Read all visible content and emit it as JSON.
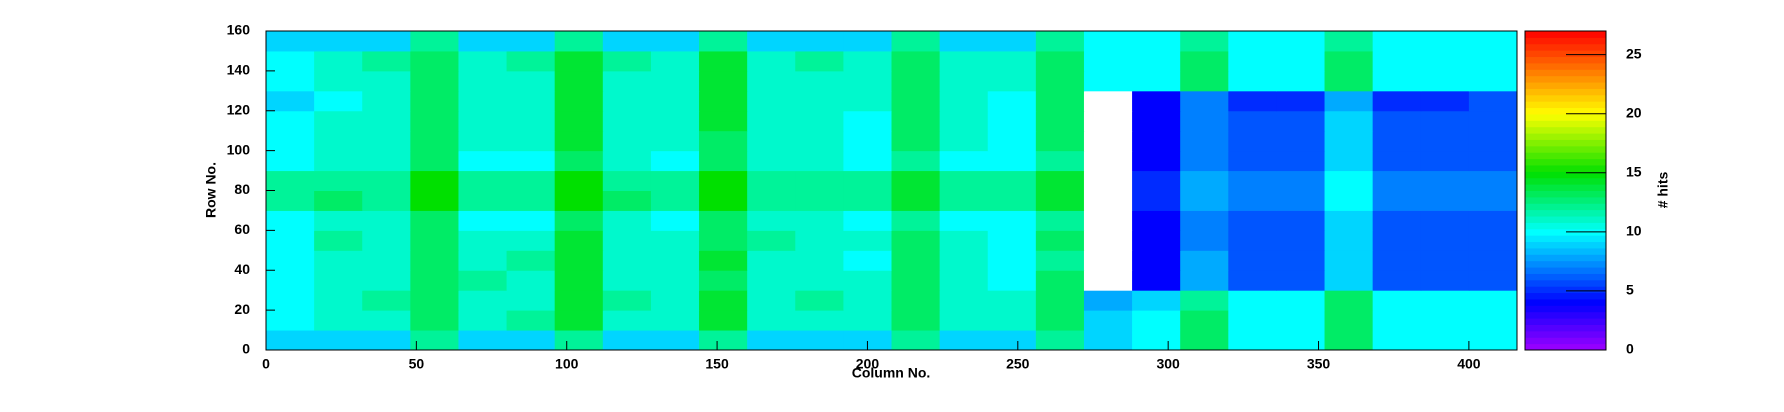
{
  "chart_data": {
    "type": "heatmap",
    "xlabel": "Column No.",
    "ylabel": "Row No.",
    "zlabel": "# hits",
    "xlim": [
      0,
      416
    ],
    "ylim": [
      0,
      160
    ],
    "zlim": [
      0,
      27
    ],
    "xticks": [
      0,
      50,
      100,
      150,
      200,
      250,
      300,
      350,
      400
    ],
    "yticks": [
      0,
      20,
      40,
      60,
      80,
      100,
      120,
      140,
      160
    ],
    "zticks": [
      0,
      5,
      10,
      15,
      20,
      25
    ],
    "empty_color": "#ffffff",
    "colorscale": [
      [
        0,
        "#9f00ff"
      ],
      [
        4,
        "#0000ff"
      ],
      [
        10,
        "#00ffff"
      ],
      [
        15,
        "#00e000"
      ],
      [
        20,
        "#ffff00"
      ],
      [
        27,
        "#ff0000"
      ]
    ],
    "values": [
      [
        9,
        9,
        9,
        12,
        9,
        9,
        12,
        9,
        9,
        12,
        9,
        9,
        9,
        12,
        9,
        9,
        12,
        9,
        10,
        13,
        10,
        10,
        13,
        10,
        10,
        10
      ],
      [
        10,
        11,
        11,
        13,
        11,
        12,
        14,
        11,
        11,
        14,
        11,
        11,
        11,
        13,
        11,
        11,
        13,
        9,
        10,
        13,
        10,
        10,
        13,
        10,
        10,
        10
      ],
      [
        10,
        11,
        12,
        13,
        11,
        11,
        14,
        12,
        11,
        14,
        11,
        12,
        11,
        13,
        11,
        11,
        13,
        8,
        9,
        12,
        10,
        10,
        13,
        10,
        10,
        10
      ],
      [
        10,
        11,
        11,
        13,
        12,
        11,
        14,
        11,
        11,
        13,
        11,
        11,
        11,
        13,
        11,
        10,
        13,
        0,
        4,
        8,
        6,
        6,
        9,
        6,
        6,
        6
      ],
      [
        10,
        11,
        11,
        13,
        11,
        12,
        14,
        11,
        11,
        14,
        11,
        11,
        10,
        13,
        11,
        10,
        12,
        0,
        4,
        8,
        6,
        6,
        9,
        6,
        6,
        6
      ],
      [
        10,
        12,
        11,
        13,
        11,
        11,
        14,
        11,
        11,
        13,
        12,
        11,
        11,
        13,
        11,
        10,
        13,
        0,
        4,
        7,
        6,
        6,
        9,
        6,
        6,
        6
      ],
      [
        10,
        11,
        11,
        13,
        10,
        10,
        13,
        11,
        10,
        13,
        11,
        11,
        10,
        12,
        10,
        10,
        12,
        0,
        4,
        7,
        6,
        6,
        9,
        6,
        6,
        6
      ],
      [
        12,
        13,
        12,
        15,
        12,
        12,
        15,
        13,
        12,
        15,
        12,
        12,
        12,
        14,
        12,
        12,
        14,
        0,
        5,
        8,
        7,
        7,
        10,
        7,
        7,
        7
      ],
      [
        12,
        12,
        12,
        15,
        12,
        12,
        15,
        12,
        12,
        15,
        12,
        12,
        12,
        14,
        12,
        12,
        14,
        0,
        5,
        8,
        7,
        7,
        10,
        7,
        7,
        7
      ],
      [
        10,
        11,
        11,
        13,
        10,
        10,
        13,
        11,
        10,
        13,
        11,
        11,
        10,
        12,
        10,
        10,
        12,
        0,
        4,
        7,
        6,
        6,
        9,
        6,
        6,
        6
      ],
      [
        10,
        11,
        11,
        13,
        11,
        11,
        14,
        11,
        11,
        13,
        11,
        11,
        10,
        13,
        11,
        10,
        13,
        0,
        4,
        7,
        6,
        6,
        9,
        6,
        6,
        6
      ],
      [
        10,
        11,
        11,
        13,
        11,
        11,
        14,
        11,
        11,
        14,
        11,
        11,
        10,
        13,
        11,
        10,
        13,
        0,
        4,
        7,
        6,
        6,
        9,
        6,
        6,
        6
      ],
      [
        9,
        10,
        11,
        13,
        11,
        11,
        14,
        11,
        11,
        14,
        11,
        11,
        11,
        13,
        11,
        10,
        13,
        0,
        4,
        7,
        5,
        5,
        8,
        5,
        5,
        6
      ],
      [
        10,
        11,
        11,
        13,
        11,
        11,
        14,
        11,
        11,
        14,
        11,
        11,
        11,
        13,
        11,
        11,
        13,
        10,
        10,
        13,
        10,
        10,
        13,
        10,
        10,
        10
      ],
      [
        10,
        11,
        12,
        13,
        11,
        12,
        14,
        12,
        11,
        14,
        11,
        12,
        11,
        13,
        11,
        11,
        13,
        10,
        10,
        13,
        10,
        10,
        13,
        10,
        10,
        10
      ],
      [
        9,
        9,
        9,
        12,
        9,
        9,
        12,
        9,
        9,
        12,
        9,
        9,
        9,
        12,
        9,
        9,
        12,
        10,
        10,
        12,
        10,
        10,
        12,
        10,
        10,
        10
      ]
    ]
  }
}
